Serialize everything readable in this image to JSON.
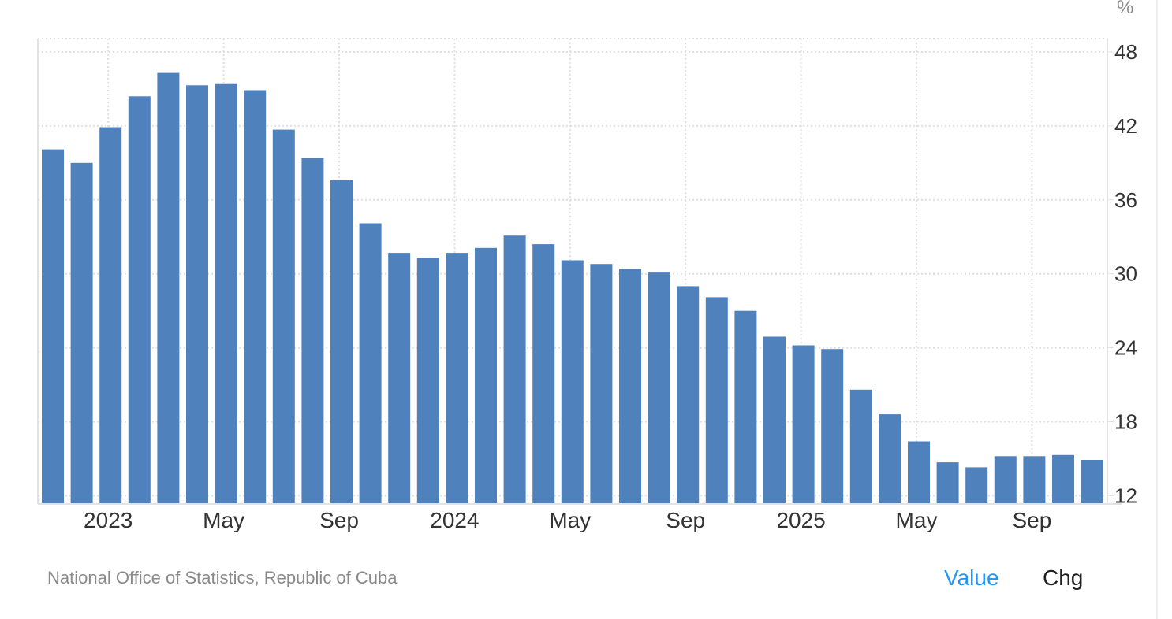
{
  "chart": {
    "unit": "%",
    "source": "National Office of Statistics, Republic of Cuba",
    "toggles": {
      "value_label": "Value",
      "chg_label": "Chg",
      "active": "Value"
    },
    "colors": {
      "bar": "#4f81bd",
      "active_toggle": "#2196f3",
      "grid": "#e0e0e0",
      "axis_text": "#333333",
      "source_text": "#8a8a8a"
    }
  },
  "chart_data": {
    "type": "bar",
    "title": "",
    "xlabel": "",
    "ylabel": "%",
    "ylim": [
      11.3,
      49.1
    ],
    "y_ticks": [
      12,
      18,
      24,
      30,
      36,
      42,
      48
    ],
    "y_axis_position": "right",
    "grid": true,
    "legend": null,
    "x_tick_labels": [
      {
        "label": "2023",
        "index": 2
      },
      {
        "label": "May",
        "index": 6
      },
      {
        "label": "Sep",
        "index": 10
      },
      {
        "label": "2024",
        "index": 14
      },
      {
        "label": "May",
        "index": 18
      },
      {
        "label": "Sep",
        "index": 22
      },
      {
        "label": "2025",
        "index": 26
      },
      {
        "label": "May",
        "index": 30
      },
      {
        "label": "Sep",
        "index": 34
      }
    ],
    "categories": [
      "Nov 2022",
      "Dec 2022",
      "Jan 2023",
      "Feb 2023",
      "Mar 2023",
      "Apr 2023",
      "May 2023",
      "Jun 2023",
      "Jul 2023",
      "Aug 2023",
      "Sep 2023",
      "Oct 2023",
      "Nov 2023",
      "Dec 2023",
      "Jan 2024",
      "Feb 2024",
      "Mar 2024",
      "Apr 2024",
      "May 2024",
      "Jun 2024",
      "Jul 2024",
      "Aug 2024",
      "Sep 2024",
      "Oct 2024",
      "Nov 2024",
      "Dec 2024",
      "Jan 2025",
      "Feb 2025",
      "Mar 2025",
      "Apr 2025",
      "May 2025",
      "Jun 2025",
      "Jul 2025",
      "Aug 2025",
      "Sep 2025",
      "Oct 2025",
      "Nov 2025"
    ],
    "values": [
      40.1,
      39.0,
      41.9,
      44.4,
      46.3,
      45.3,
      45.4,
      44.9,
      41.7,
      39.4,
      37.6,
      34.1,
      31.7,
      31.3,
      31.7,
      32.1,
      33.1,
      32.4,
      31.1,
      30.8,
      30.4,
      30.1,
      29.0,
      28.1,
      27.0,
      24.9,
      24.2,
      23.9,
      20.6,
      18.6,
      16.4,
      14.7,
      14.3,
      15.2,
      15.2,
      15.3,
      14.9
    ]
  }
}
